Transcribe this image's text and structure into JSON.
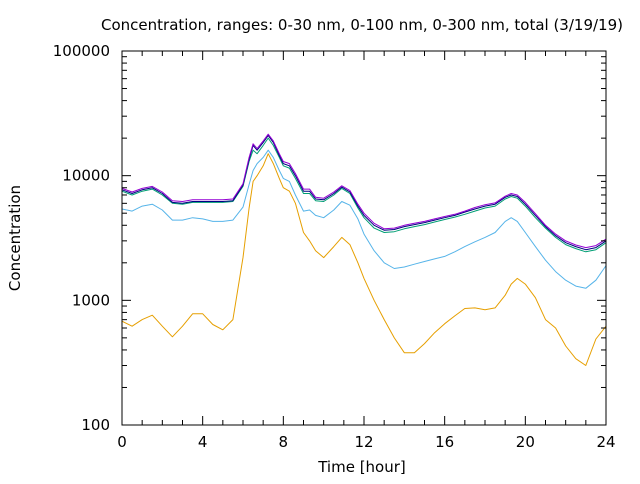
{
  "chart_data": {
    "type": "line",
    "title": "Concentration, ranges: 0-30 nm, 0-100 nm, 0-300 nm, total (3/19/19)",
    "xlabel": "Time [hour]",
    "ylabel": "Concentration",
    "xlim": [
      0,
      24
    ],
    "ylim": [
      100,
      100000
    ],
    "yscale": "log",
    "grid": false,
    "x_ticks": [
      0,
      4,
      8,
      12,
      16,
      20,
      24
    ],
    "x_tick_labels": [
      "0",
      "4",
      "8",
      "12",
      "16",
      "20",
      "24"
    ],
    "y_ticks": [
      100,
      1000,
      10000,
      100000
    ],
    "y_tick_labels": [
      "100",
      "1000",
      "10000",
      "100000"
    ],
    "x": [
      0,
      0.5,
      1,
      1.5,
      2,
      2.5,
      3,
      3.5,
      4,
      4.5,
      5,
      5.5,
      6,
      6.3,
      6.5,
      6.7,
      7,
      7.25,
      7.5,
      7.8,
      8,
      8.3,
      8.6,
      9,
      9.3,
      9.6,
      10,
      10.5,
      10.9,
      11.3,
      11.7,
      12,
      12.5,
      13,
      13.5,
      14,
      14.5,
      15,
      15.5,
      16,
      16.5,
      17,
      17.5,
      18,
      18.5,
      19,
      19.3,
      19.6,
      20,
      20.5,
      21,
      21.5,
      22,
      22.5,
      23,
      23.5,
      24
    ],
    "series": [
      {
        "color": "#e69f00",
        "values": [
          680,
          620,
          700,
          760,
          620,
          510,
          620,
          780,
          780,
          640,
          580,
          700,
          2200,
          5500,
          9000,
          10000,
          12000,
          15000,
          12500,
          9500,
          8000,
          7500,
          6000,
          3500,
          3000,
          2500,
          2200,
          2700,
          3200,
          2800,
          2000,
          1500,
          1000,
          700,
          500,
          380,
          380,
          450,
          550,
          650,
          750,
          860,
          870,
          840,
          870,
          1100,
          1350,
          1500,
          1350,
          1050,
          700,
          600,
          430,
          340,
          300,
          490,
          620
        ]
      },
      {
        "color": "#56b4e9",
        "values": [
          5400,
          5200,
          5700,
          5900,
          5300,
          4400,
          4400,
          4600,
          4500,
          4300,
          4300,
          4400,
          5600,
          8500,
          11000,
          12500,
          14000,
          16000,
          14000,
          11000,
          9500,
          9000,
          7000,
          5200,
          5300,
          4800,
          4600,
          5300,
          6200,
          5800,
          4500,
          3400,
          2500,
          2000,
          1800,
          1850,
          1950,
          2050,
          2150,
          2250,
          2450,
          2700,
          2950,
          3200,
          3500,
          4300,
          4600,
          4300,
          3500,
          2700,
          2100,
          1700,
          1450,
          1300,
          1250,
          1450,
          1900
        ]
      },
      {
        "color": "#009e73",
        "values": [
          7500,
          7000,
          7500,
          7800,
          7000,
          6000,
          5900,
          6100,
          6100,
          6100,
          6100,
          6200,
          8200,
          13000,
          16000,
          15000,
          17500,
          20000,
          17500,
          14000,
          12000,
          11500,
          9500,
          7200,
          7200,
          6300,
          6200,
          7000,
          7900,
          7200,
          5500,
          4600,
          3800,
          3500,
          3550,
          3750,
          3900,
          4050,
          4250,
          4450,
          4650,
          4900,
          5200,
          5500,
          5700,
          6500,
          6800,
          6600,
          5700,
          4600,
          3800,
          3200,
          2800,
          2600,
          2450,
          2550,
          2900
        ]
      },
      {
        "color": "#000080",
        "values": [
          7700,
          7200,
          7700,
          8000,
          7200,
          6100,
          6000,
          6200,
          6200,
          6200,
          6200,
          6300,
          8400,
          13500,
          17500,
          16000,
          18500,
          21000,
          18500,
          14500,
          12500,
          12000,
          10000,
          7500,
          7500,
          6500,
          6400,
          7200,
          8100,
          7400,
          5700,
          4800,
          4000,
          3650,
          3700,
          3900,
          4050,
          4200,
          4400,
          4600,
          4800,
          5100,
          5400,
          5700,
          5900,
          6700,
          7000,
          6800,
          5900,
          4800,
          3900,
          3300,
          2900,
          2700,
          2550,
          2650,
          3000
        ]
      },
      {
        "color": "#9400d3",
        "values": [
          7900,
          7400,
          7900,
          8200,
          7400,
          6300,
          6200,
          6400,
          6400,
          6400,
          6400,
          6500,
          8600,
          14000,
          18000,
          16500,
          19000,
          21500,
          19000,
          15000,
          13000,
          12500,
          10400,
          7800,
          7800,
          6700,
          6600,
          7400,
          8300,
          7600,
          5900,
          5000,
          4150,
          3750,
          3800,
          4000,
          4150,
          4300,
          4500,
          4700,
          4900,
          5200,
          5550,
          5850,
          6050,
          6850,
          7200,
          7000,
          6100,
          4950,
          4000,
          3400,
          3000,
          2780,
          2650,
          2750,
          3100
        ]
      }
    ]
  }
}
